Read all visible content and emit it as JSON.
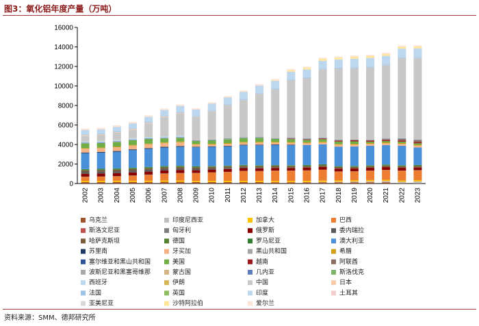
{
  "title": "图3：氧化铝年度产量（万吨）",
  "source": "资料来源：SMM、德邦研究所",
  "chart_data": {
    "type": "bar",
    "stacked": true,
    "title": "图3：氧化铝年度产量（万吨）",
    "xlabel": "",
    "ylabel": "",
    "ylim": [
      0,
      16000
    ],
    "yticks": [
      "0",
      "2000",
      "4000",
      "6000",
      "8000",
      "10000",
      "12000",
      "14000",
      "16000"
    ],
    "grid": false,
    "legend_position": "bottom",
    "categories": [
      "2002",
      "2003",
      "2004",
      "2005",
      "2006",
      "2007",
      "2008",
      "2009",
      "2010",
      "2011",
      "2012",
      "2013",
      "2014",
      "2015",
      "2016",
      "2017",
      "2018",
      "2019",
      "2020",
      "2021",
      "2022",
      "2023"
    ],
    "series": [
      {
        "name": "乌克兰",
        "color": "#a0522d",
        "values": [
          150,
          150,
          160,
          160,
          160,
          170,
          170,
          150,
          150,
          150,
          150,
          140,
          130,
          130,
          130,
          130,
          130,
          130,
          130,
          130,
          30,
          20
        ]
      },
      {
        "name": "印度尼西亚",
        "color": "#bfbfbf",
        "values": [
          0,
          0,
          0,
          0,
          0,
          0,
          0,
          0,
          0,
          0,
          0,
          0,
          0,
          0,
          20,
          40,
          60,
          80,
          100,
          120,
          150,
          200
        ]
      },
      {
        "name": "加拿大",
        "color": "#ffc000",
        "values": [
          130,
          130,
          130,
          130,
          130,
          140,
          140,
          120,
          130,
          130,
          130,
          130,
          130,
          130,
          130,
          130,
          130,
          130,
          130,
          130,
          130,
          130
        ]
      },
      {
        "name": "巴西",
        "color": "#ed7d31",
        "values": [
          400,
          420,
          450,
          520,
          600,
          700,
          750,
          800,
          850,
          900,
          1000,
          1000,
          1050,
          1050,
          1050,
          1100,
          900,
          900,
          950,
          1000,
          1000,
          1000
        ]
      },
      {
        "name": "斯洛文尼亚",
        "color": "#c0504d",
        "values": [
          0,
          0,
          0,
          0,
          0,
          0,
          0,
          0,
          0,
          0,
          0,
          0,
          0,
          0,
          0,
          0,
          0,
          0,
          0,
          0,
          0,
          0
        ]
      },
      {
        "name": "匈牙利",
        "color": "#7f7f7f",
        "values": [
          30,
          30,
          30,
          30,
          30,
          30,
          30,
          20,
          20,
          20,
          20,
          20,
          20,
          20,
          20,
          20,
          20,
          20,
          20,
          20,
          20,
          20
        ]
      },
      {
        "name": "俄罗斯",
        "color": "#8b0000",
        "values": [
          290,
          300,
          300,
          300,
          300,
          300,
          300,
          270,
          280,
          290,
          280,
          270,
          270,
          270,
          280,
          280,
          280,
          280,
          280,
          280,
          280,
          270
        ]
      },
      {
        "name": "委内瑞拉",
        "color": "#5a5a5a",
        "values": [
          190,
          190,
          190,
          190,
          190,
          160,
          160,
          150,
          120,
          100,
          80,
          60,
          40,
          30,
          20,
          20,
          10,
          10,
          10,
          10,
          10,
          10
        ]
      },
      {
        "name": "哈萨克斯坦",
        "color": "#7b5a3a",
        "values": [
          150,
          150,
          150,
          150,
          150,
          150,
          150,
          150,
          150,
          150,
          150,
          150,
          150,
          150,
          150,
          150,
          150,
          150,
          150,
          150,
          150,
          150
        ]
      },
      {
        "name": "德国",
        "color": "#548235",
        "values": [
          80,
          80,
          80,
          80,
          80,
          80,
          80,
          60,
          60,
          60,
          60,
          60,
          60,
          60,
          60,
          60,
          60,
          60,
          60,
          60,
          60,
          60
        ]
      },
      {
        "name": "罗马尼亚",
        "color": "#2e7d32",
        "values": [
          60,
          60,
          60,
          60,
          60,
          50,
          50,
          40,
          40,
          40,
          40,
          40,
          40,
          40,
          40,
          40,
          40,
          40,
          40,
          40,
          40,
          40
        ]
      },
      {
        "name": "澳大利亚",
        "color": "#4a90d9",
        "values": [
          1620,
          1650,
          1700,
          1800,
          1850,
          1900,
          1930,
          1950,
          1950,
          1950,
          2000,
          2050,
          2050,
          2050,
          2050,
          2050,
          2000,
          2000,
          2000,
          2000,
          2000,
          1800
        ]
      },
      {
        "name": "苏里南",
        "color": "#1f3864",
        "values": [
          80,
          80,
          80,
          80,
          80,
          80,
          80,
          60,
          60,
          60,
          60,
          60,
          60,
          50,
          0,
          0,
          0,
          0,
          0,
          0,
          0,
          0
        ]
      },
      {
        "name": "牙买加",
        "color": "#f4b183",
        "values": [
          360,
          360,
          370,
          370,
          370,
          370,
          360,
          200,
          180,
          200,
          200,
          200,
          180,
          180,
          180,
          180,
          180,
          180,
          180,
          180,
          180,
          180
        ]
      },
      {
        "name": "黑山共和国",
        "color": "#a5a5a5",
        "values": [
          20,
          20,
          20,
          20,
          20,
          20,
          20,
          10,
          10,
          10,
          10,
          10,
          10,
          10,
          10,
          10,
          10,
          10,
          10,
          10,
          10,
          10
        ]
      },
      {
        "name": "希腊",
        "color": "#d4a017",
        "values": [
          70,
          70,
          70,
          70,
          70,
          70,
          70,
          70,
          70,
          80,
          80,
          80,
          80,
          80,
          80,
          80,
          80,
          80,
          80,
          80,
          80,
          80
        ]
      },
      {
        "name": "塞尔维亚和黑山共和国",
        "color": "#2f5597",
        "values": [
          0,
          0,
          0,
          0,
          0,
          0,
          0,
          0,
          0,
          0,
          0,
          0,
          0,
          0,
          0,
          0,
          0,
          0,
          0,
          0,
          0,
          0
        ]
      },
      {
        "name": "美国",
        "color": "#70ad47",
        "values": [
          480,
          450,
          470,
          480,
          470,
          400,
          400,
          300,
          350,
          400,
          400,
          400,
          300,
          300,
          250,
          250,
          250,
          250,
          150,
          150,
          150,
          150
        ]
      },
      {
        "name": "越南",
        "color": "#9e1a1a",
        "values": [
          0,
          0,
          0,
          0,
          0,
          0,
          0,
          0,
          0,
          0,
          0,
          0,
          0,
          50,
          60,
          80,
          100,
          120,
          120,
          120,
          120,
          120
        ]
      },
      {
        "name": "阿联酋",
        "color": "#8c6d62",
        "values": [
          0,
          0,
          0,
          0,
          0,
          0,
          0,
          0,
          0,
          0,
          0,
          0,
          0,
          0,
          0,
          0,
          0,
          0,
          0,
          50,
          150,
          200
        ]
      },
      {
        "name": "波斯尼亚和黑塞哥维那",
        "color": "#a9a9a9",
        "values": [
          20,
          20,
          20,
          20,
          20,
          20,
          20,
          20,
          20,
          20,
          20,
          20,
          20,
          20,
          20,
          20,
          20,
          20,
          20,
          20,
          20,
          20
        ]
      },
      {
        "name": "蒙古国",
        "color": "#d4b483",
        "values": [
          0,
          0,
          0,
          0,
          0,
          0,
          0,
          0,
          0,
          0,
          0,
          0,
          0,
          0,
          0,
          0,
          0,
          0,
          0,
          0,
          0,
          0
        ]
      },
      {
        "name": "几内亚",
        "color": "#5b7fbe",
        "values": [
          50,
          50,
          50,
          50,
          50,
          50,
          50,
          50,
          50,
          50,
          50,
          50,
          50,
          50,
          50,
          50,
          50,
          50,
          50,
          50,
          50,
          50
        ]
      },
      {
        "name": "斯洛伐克",
        "color": "#7fb36a",
        "values": [
          0,
          0,
          0,
          0,
          0,
          0,
          0,
          0,
          0,
          0,
          0,
          0,
          0,
          0,
          0,
          0,
          0,
          0,
          0,
          0,
          0,
          0
        ]
      },
      {
        "name": "西班牙",
        "color": "#bdd7ee",
        "values": [
          150,
          150,
          150,
          150,
          150,
          150,
          150,
          0,
          0,
          0,
          0,
          0,
          0,
          0,
          0,
          0,
          0,
          0,
          0,
          0,
          0,
          0
        ]
      },
      {
        "name": "伊朗",
        "color": "#d6b656",
        "values": [
          20,
          20,
          20,
          20,
          20,
          20,
          20,
          20,
          20,
          20,
          20,
          20,
          20,
          20,
          20,
          20,
          20,
          20,
          20,
          20,
          20,
          20
        ]
      },
      {
        "name": "中国",
        "color": "#c8c8c8",
        "values": [
          550,
          600,
          700,
          850,
          1350,
          1950,
          2250,
          2400,
          2900,
          3400,
          3800,
          4400,
          5000,
          5900,
          6200,
          7000,
          7300,
          7300,
          7400,
          7500,
          8200,
          8300
        ]
      },
      {
        "name": "日本",
        "color": "#f8cbad",
        "values": [
          70,
          70,
          70,
          70,
          70,
          60,
          60,
          30,
          20,
          20,
          20,
          20,
          0,
          0,
          0,
          0,
          0,
          0,
          0,
          0,
          0,
          0
        ]
      },
      {
        "name": "法国",
        "color": "#9dc3e6",
        "values": [
          60,
          60,
          60,
          60,
          60,
          60,
          60,
          60,
          60,
          60,
          60,
          60,
          60,
          60,
          60,
          60,
          60,
          60,
          60,
          60,
          60,
          60
        ]
      },
      {
        "name": "英国",
        "color": "#8fbc5f",
        "values": [
          0,
          0,
          0,
          0,
          0,
          0,
          0,
          0,
          0,
          0,
          0,
          0,
          0,
          0,
          0,
          0,
          0,
          0,
          0,
          0,
          0,
          0
        ]
      },
      {
        "name": "印度",
        "color": "#bdd7ee",
        "values": [
          450,
          450,
          480,
          500,
          550,
          600,
          650,
          650,
          700,
          700,
          750,
          800,
          800,
          800,
          800,
          800,
          850,
          900,
          900,
          900,
          900,
          950
        ]
      },
      {
        "name": "土耳其",
        "color": "#f4cccc",
        "values": [
          20,
          20,
          20,
          20,
          20,
          20,
          20,
          20,
          20,
          20,
          20,
          20,
          20,
          20,
          20,
          20,
          20,
          20,
          20,
          20,
          20,
          20
        ]
      },
      {
        "name": "亚美尼亚",
        "color": "#d9d9d9",
        "values": [
          0,
          0,
          0,
          0,
          0,
          0,
          0,
          0,
          0,
          0,
          0,
          0,
          0,
          0,
          0,
          0,
          0,
          0,
          0,
          0,
          0,
          0
        ]
      },
      {
        "name": "沙特阿拉伯",
        "color": "#ffe699",
        "values": [
          0,
          0,
          0,
          0,
          0,
          0,
          0,
          0,
          0,
          0,
          0,
          0,
          50,
          150,
          150,
          180,
          180,
          180,
          180,
          180,
          180,
          180
        ]
      },
      {
        "name": "爱尔兰",
        "color": "#fbe5d6",
        "values": [
          130,
          130,
          130,
          130,
          130,
          130,
          130,
          110,
          120,
          130,
          130,
          130,
          130,
          130,
          130,
          130,
          130,
          130,
          130,
          130,
          130,
          130
        ]
      }
    ]
  }
}
